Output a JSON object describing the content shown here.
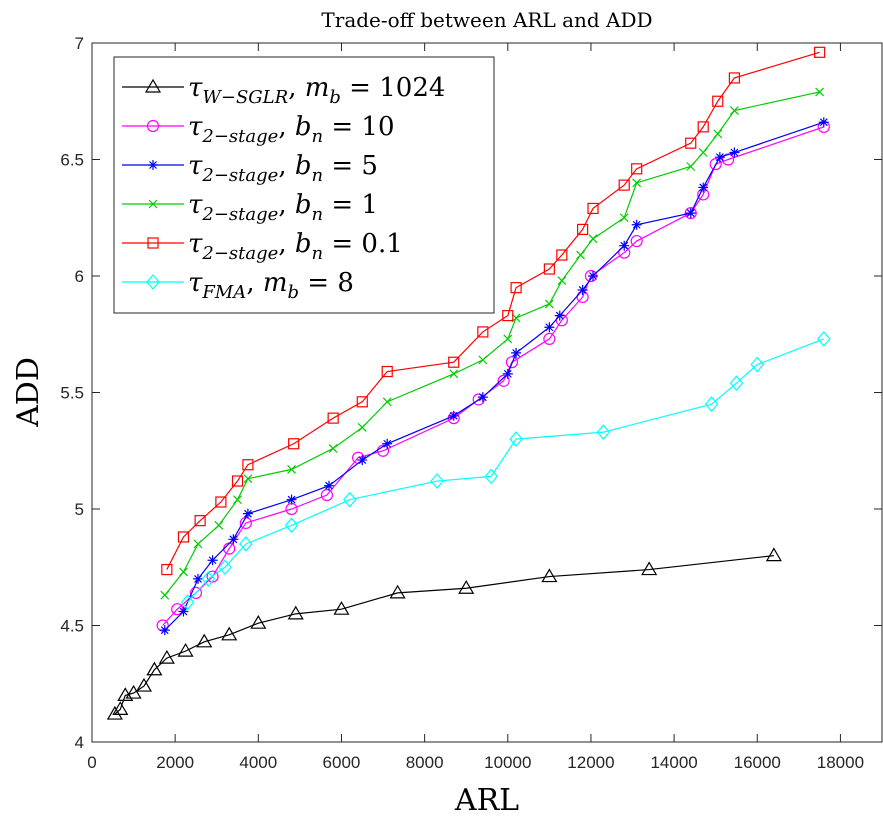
{
  "chart_data": {
    "type": "line",
    "title": "Trade-off between ARL and ADD",
    "xlabel": "ARL",
    "ylabel": "ADD",
    "xlim": [
      0,
      19000
    ],
    "ylim": [
      4,
      7
    ],
    "xticks": [
      0,
      2000,
      4000,
      6000,
      8000,
      10000,
      12000,
      14000,
      16000,
      18000
    ],
    "yticks": [
      4,
      4.5,
      5,
      5.5,
      6,
      6.5,
      7
    ],
    "xtick_labels": [
      "0",
      "2000",
      "4000",
      "6000",
      "8000",
      "10000",
      "12000",
      "14000",
      "16000",
      "18000"
    ],
    "ytick_labels": [
      "4",
      "4.5",
      "5",
      "5.5",
      "6",
      "6.5",
      "7"
    ],
    "grid": false,
    "legend_position": "top-left",
    "series": [
      {
        "name": "τW−SGLR, mb = 1024",
        "color": "#000000",
        "marker": "triangle",
        "points": [
          [
            550,
            4.12
          ],
          [
            680,
            4.14
          ],
          [
            800,
            4.2
          ],
          [
            1000,
            4.21
          ],
          [
            1250,
            4.24
          ],
          [
            1500,
            4.31
          ],
          [
            1800,
            4.36
          ],
          [
            2250,
            4.39
          ],
          [
            2700,
            4.43
          ],
          [
            3300,
            4.46
          ],
          [
            4000,
            4.51
          ],
          [
            4900,
            4.55
          ],
          [
            6000,
            4.57
          ],
          [
            7350,
            4.64
          ],
          [
            9000,
            4.66
          ],
          [
            11000,
            4.71
          ],
          [
            13400,
            4.74
          ],
          [
            16400,
            4.8
          ]
        ]
      },
      {
        "name": "τ2−stage, bn = 10",
        "color": "#ff00ff",
        "marker": "circle",
        "points": [
          [
            1700,
            4.5
          ],
          [
            2050,
            4.57
          ],
          [
            2500,
            4.64
          ],
          [
            2900,
            4.71
          ],
          [
            3300,
            4.83
          ],
          [
            3700,
            4.94
          ],
          [
            4800,
            5.0
          ],
          [
            5650,
            5.06
          ],
          [
            6400,
            5.22
          ],
          [
            7000,
            5.25
          ],
          [
            8700,
            5.39
          ],
          [
            9300,
            5.47
          ],
          [
            9900,
            5.55
          ],
          [
            10100,
            5.63
          ],
          [
            11000,
            5.73
          ],
          [
            11300,
            5.81
          ],
          [
            11800,
            5.91
          ],
          [
            12000,
            6.0
          ],
          [
            12800,
            6.1
          ],
          [
            13100,
            6.15
          ],
          [
            14400,
            6.27
          ],
          [
            14700,
            6.35
          ],
          [
            15000,
            6.48
          ],
          [
            15300,
            6.5
          ],
          [
            17600,
            6.64
          ]
        ]
      },
      {
        "name": "τ2−stage, bn = 5",
        "color": "#0000ff",
        "marker": "asterisk",
        "points": [
          [
            1750,
            4.48
          ],
          [
            2200,
            4.56
          ],
          [
            2550,
            4.7
          ],
          [
            2900,
            4.78
          ],
          [
            3400,
            4.87
          ],
          [
            3750,
            4.98
          ],
          [
            4800,
            5.04
          ],
          [
            5700,
            5.1
          ],
          [
            6500,
            5.21
          ],
          [
            7100,
            5.28
          ],
          [
            8700,
            5.4
          ],
          [
            9400,
            5.48
          ],
          [
            10000,
            5.58
          ],
          [
            10200,
            5.67
          ],
          [
            11000,
            5.78
          ],
          [
            11250,
            5.83
          ],
          [
            11800,
            5.94
          ],
          [
            12050,
            6.0
          ],
          [
            12800,
            6.13
          ],
          [
            13100,
            6.22
          ],
          [
            14400,
            6.27
          ],
          [
            14700,
            6.38
          ],
          [
            15100,
            6.51
          ],
          [
            15450,
            6.53
          ],
          [
            17600,
            6.66
          ]
        ]
      },
      {
        "name": "τ2−stage, bn = 1",
        "color": "#00cc00",
        "marker": "x",
        "points": [
          [
            1750,
            4.63
          ],
          [
            2200,
            4.73
          ],
          [
            2550,
            4.85
          ],
          [
            3050,
            4.93
          ],
          [
            3500,
            5.04
          ],
          [
            3750,
            5.13
          ],
          [
            4800,
            5.17
          ],
          [
            5800,
            5.26
          ],
          [
            6500,
            5.35
          ],
          [
            7100,
            5.46
          ],
          [
            8700,
            5.58
          ],
          [
            9400,
            5.64
          ],
          [
            10000,
            5.73
          ],
          [
            10200,
            5.82
          ],
          [
            11000,
            5.88
          ],
          [
            11300,
            5.98
          ],
          [
            11750,
            6.09
          ],
          [
            12050,
            6.16
          ],
          [
            12800,
            6.25
          ],
          [
            13100,
            6.4
          ],
          [
            14400,
            6.47
          ],
          [
            14700,
            6.53
          ],
          [
            15050,
            6.61
          ],
          [
            15450,
            6.71
          ],
          [
            17500,
            6.79
          ]
        ]
      },
      {
        "name": "τ2−stage, bn = 0.1",
        "color": "#ff0000",
        "marker": "square",
        "points": [
          [
            1800,
            4.74
          ],
          [
            2200,
            4.88
          ],
          [
            2600,
            4.95
          ],
          [
            3100,
            5.03
          ],
          [
            3500,
            5.12
          ],
          [
            3750,
            5.19
          ],
          [
            4850,
            5.28
          ],
          [
            5800,
            5.39
          ],
          [
            6500,
            5.46
          ],
          [
            7100,
            5.59
          ],
          [
            8700,
            5.63
          ],
          [
            9400,
            5.76
          ],
          [
            10000,
            5.83
          ],
          [
            10200,
            5.95
          ],
          [
            11000,
            6.03
          ],
          [
            11300,
            6.09
          ],
          [
            11800,
            6.2
          ],
          [
            12050,
            6.29
          ],
          [
            12800,
            6.39
          ],
          [
            13100,
            6.46
          ],
          [
            14400,
            6.57
          ],
          [
            14700,
            6.64
          ],
          [
            15050,
            6.75
          ],
          [
            15450,
            6.85
          ],
          [
            17500,
            6.96
          ]
        ]
      },
      {
        "name": "τFMA, mb = 8",
        "color": "#00ffff",
        "marker": "diamond",
        "points": [
          [
            2300,
            4.6
          ],
          [
            2800,
            4.7
          ],
          [
            3200,
            4.75
          ],
          [
            3700,
            4.85
          ],
          [
            4800,
            4.93
          ],
          [
            6200,
            5.04
          ],
          [
            8300,
            5.12
          ],
          [
            9600,
            5.14
          ],
          [
            10200,
            5.3
          ],
          [
            12300,
            5.33
          ],
          [
            14900,
            5.45
          ],
          [
            15500,
            5.54
          ],
          [
            16000,
            5.62
          ],
          [
            17600,
            5.73
          ]
        ]
      }
    ]
  },
  "legend": [
    {
      "sym": "τ",
      "sub": "W−SGLR",
      "param": "m",
      "param_sub": "b",
      "value": "1024"
    },
    {
      "sym": "τ",
      "sub": "2−stage",
      "param": "b",
      "param_sub": "n",
      "value": "10"
    },
    {
      "sym": "τ",
      "sub": "2−stage",
      "param": "b",
      "param_sub": "n",
      "value": "5"
    },
    {
      "sym": "τ",
      "sub": "2−stage",
      "param": "b",
      "param_sub": "n",
      "value": "1"
    },
    {
      "sym": "τ",
      "sub": "2−stage",
      "param": "b",
      "param_sub": "n",
      "value": "0.1"
    },
    {
      "sym": "τ",
      "sub": "FMA",
      "param": "m",
      "param_sub": "b",
      "value": "8"
    }
  ]
}
